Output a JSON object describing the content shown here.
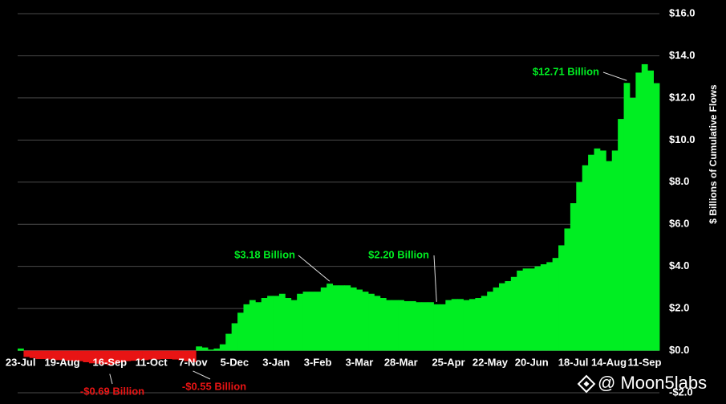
{
  "chart_data": {
    "type": "bar",
    "y_label": "$ Billions of Cumulative Flows",
    "watermark": "@ Moon5labs",
    "colors": {
      "positive": "#00ee22",
      "negative": "#e81414",
      "background": "#000000"
    },
    "grid": true,
    "ylim": [
      -2,
      16
    ],
    "yticks": [
      {
        "value": -2,
        "label": "-$2.0"
      },
      {
        "value": 0,
        "label": "$0.0"
      },
      {
        "value": 2,
        "label": "$2.0"
      },
      {
        "value": 4,
        "label": "$4.0"
      },
      {
        "value": 6,
        "label": "$6.0"
      },
      {
        "value": 8,
        "label": "$8.0"
      },
      {
        "value": 10,
        "label": "$10.0"
      },
      {
        "value": 12,
        "label": "$12.0"
      },
      {
        "value": 14,
        "label": "$14.0"
      },
      {
        "value": 16,
        "label": "$16.0"
      }
    ],
    "categories": [
      "23-Jul",
      null,
      null,
      null,
      null,
      null,
      null,
      "19-Aug",
      null,
      null,
      null,
      null,
      null,
      null,
      null,
      "16-Sep",
      null,
      null,
      null,
      null,
      null,
      null,
      "11-Oct",
      null,
      null,
      null,
      null,
      null,
      null,
      "7-Nov",
      null,
      null,
      null,
      null,
      null,
      null,
      "5-Dec",
      null,
      null,
      null,
      null,
      null,
      null,
      "3-Jan",
      null,
      null,
      null,
      null,
      null,
      null,
      "3-Feb",
      null,
      null,
      null,
      null,
      null,
      null,
      "3-Mar",
      null,
      null,
      null,
      null,
      null,
      null,
      "28-Mar",
      null,
      null,
      null,
      null,
      null,
      null,
      null,
      "25-Apr",
      null,
      null,
      null,
      null,
      null,
      null,
      "22-May",
      null,
      null,
      null,
      null,
      null,
      null,
      "20-Jun",
      null,
      null,
      null,
      null,
      null,
      null,
      "18-Jul",
      null,
      null,
      null,
      null,
      null,
      "14-Aug",
      null,
      null,
      null,
      null,
      null,
      "11-Sep",
      null,
      null
    ],
    "values": [
      0.1,
      -0.3,
      -0.35,
      -0.4,
      -0.4,
      -0.42,
      -0.45,
      -0.45,
      -0.48,
      -0.5,
      -0.5,
      -0.55,
      -0.6,
      -0.62,
      -0.65,
      -0.69,
      -0.62,
      -0.55,
      -0.5,
      -0.48,
      -0.45,
      -0.45,
      -0.42,
      -0.42,
      -0.4,
      -0.4,
      -0.42,
      -0.45,
      -0.5,
      -0.55,
      0.2,
      0.15,
      0.05,
      0.1,
      0.3,
      0.8,
      1.3,
      1.8,
      2.2,
      2.4,
      2.3,
      2.5,
      2.6,
      2.6,
      2.7,
      2.5,
      2.4,
      2.7,
      2.8,
      2.8,
      2.8,
      3.0,
      3.18,
      3.1,
      3.1,
      3.1,
      3.0,
      2.9,
      2.8,
      2.7,
      2.6,
      2.5,
      2.4,
      2.4,
      2.4,
      2.35,
      2.35,
      2.3,
      2.3,
      2.3,
      2.2,
      2.2,
      2.4,
      2.45,
      2.45,
      2.4,
      2.45,
      2.5,
      2.6,
      2.8,
      3.0,
      3.2,
      3.3,
      3.5,
      3.8,
      3.9,
      3.9,
      4.0,
      4.1,
      4.2,
      4.4,
      5.0,
      5.8,
      7.0,
      8.0,
      8.8,
      9.3,
      9.6,
      9.5,
      9.0,
      9.5,
      11.0,
      12.71,
      12.0,
      13.2,
      13.6,
      13.3,
      12.7
    ],
    "annotations": [
      "$12.71 Billion",
      "$3.18 Billion",
      "$2.20 Billion",
      "-$0.69 Billion",
      "-$0.55 Billion"
    ]
  }
}
